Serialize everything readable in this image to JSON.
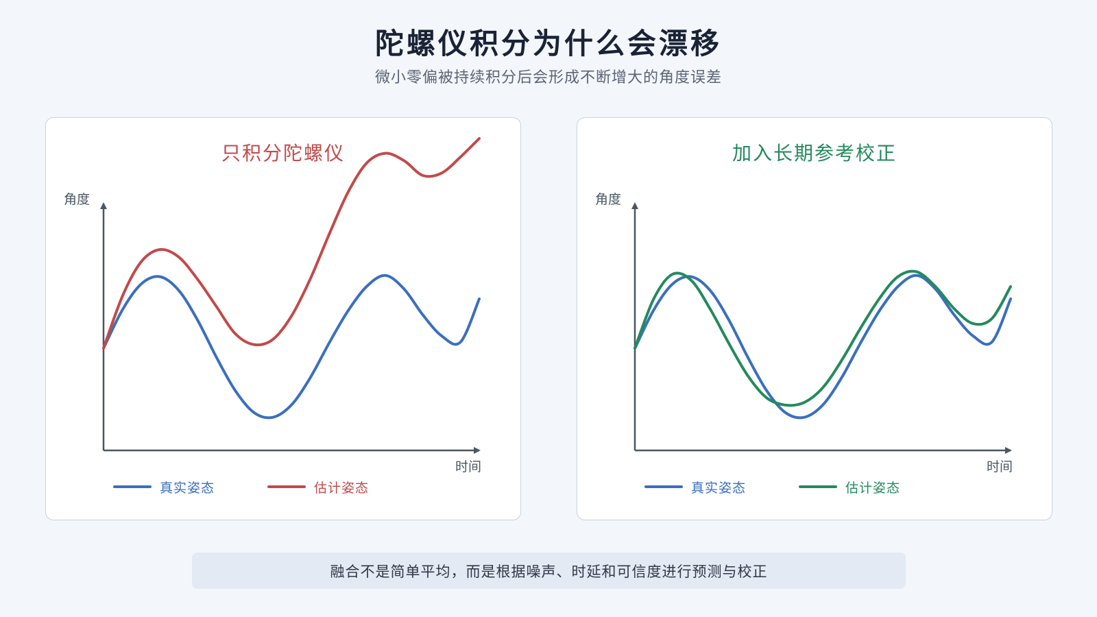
{
  "header": {
    "title": "陀螺仪积分为什么会漂移",
    "subtitle": "微小零偏被持续积分后会形成不断增大的角度误差"
  },
  "colors": {
    "true_attitude": "#3a6fbf",
    "gyro_only_estimate": "#c24a4a",
    "corrected_estimate": "#238a5c",
    "axis": "#4b5563"
  },
  "chart_data": [
    {
      "type": "line",
      "title": "只积分陀螺仪",
      "xlabel": "时间",
      "ylabel": "角度",
      "xlim": [
        0,
        1
      ],
      "ylim": [
        -1.5,
        1.5
      ],
      "series": [
        {
          "name": "真实姿态",
          "color": "#3a6fbf",
          "x": [
            0,
            0.05,
            0.1,
            0.15,
            0.2,
            0.25,
            0.3,
            0.35,
            0.4,
            0.45,
            0.5,
            0.55,
            0.6,
            0.65,
            0.7,
            0.75,
            0.8,
            0.85,
            0.9,
            0.95,
            1
          ],
          "y": [
            0,
            0.31,
            0.52,
            0.58,
            0.47,
            0.23,
            -0.07,
            -0.34,
            -0.52,
            -0.56,
            -0.46,
            -0.24,
            0.04,
            0.3,
            0.5,
            0.59,
            0.48,
            0.27,
            0.1,
            0.05,
            0.4
          ]
        },
        {
          "name": "估计姿态",
          "color": "#c24a4a",
          "x": [
            0,
            0.05,
            0.1,
            0.15,
            0.2,
            0.25,
            0.3,
            0.35,
            0.4,
            0.45,
            0.5,
            0.55,
            0.6,
            0.65,
            0.7,
            0.75,
            0.8,
            0.85,
            0.9,
            0.95,
            1
          ],
          "y": [
            0,
            0.42,
            0.7,
            0.8,
            0.74,
            0.56,
            0.34,
            0.12,
            0.03,
            0.07,
            0.26,
            0.56,
            0.92,
            1.26,
            1.5,
            1.58,
            1.52,
            1.4,
            1.42,
            1.55,
            1.7
          ]
        }
      ]
    },
    {
      "type": "line",
      "title": "加入长期参考校正",
      "xlabel": "时间",
      "ylabel": "角度",
      "xlim": [
        0,
        1
      ],
      "ylim": [
        -1.5,
        1.5
      ],
      "series": [
        {
          "name": "真实姿态",
          "color": "#3a6fbf",
          "x": [
            0,
            0.05,
            0.1,
            0.15,
            0.2,
            0.25,
            0.3,
            0.35,
            0.4,
            0.45,
            0.5,
            0.55,
            0.6,
            0.65,
            0.7,
            0.75,
            0.8,
            0.85,
            0.9,
            0.95,
            1
          ],
          "y": [
            0,
            0.31,
            0.52,
            0.58,
            0.47,
            0.23,
            -0.07,
            -0.34,
            -0.52,
            -0.56,
            -0.46,
            -0.24,
            0.04,
            0.3,
            0.5,
            0.59,
            0.48,
            0.27,
            0.1,
            0.05,
            0.4
          ]
        },
        {
          "name": "估计姿态",
          "color": "#238a5c",
          "x": [
            0,
            0.05,
            0.1,
            0.15,
            0.2,
            0.25,
            0.3,
            0.35,
            0.4,
            0.45,
            0.5,
            0.55,
            0.6,
            0.65,
            0.7,
            0.75,
            0.8,
            0.85,
            0.9,
            0.95,
            1
          ],
          "y": [
            0,
            0.4,
            0.6,
            0.55,
            0.32,
            0.04,
            -0.22,
            -0.4,
            -0.46,
            -0.44,
            -0.32,
            -0.1,
            0.16,
            0.4,
            0.58,
            0.62,
            0.5,
            0.32,
            0.2,
            0.24,
            0.5
          ]
        }
      ]
    }
  ],
  "footer": {
    "note": "融合不是简单平均，而是根据噪声、时延和可信度进行预测与校正"
  }
}
